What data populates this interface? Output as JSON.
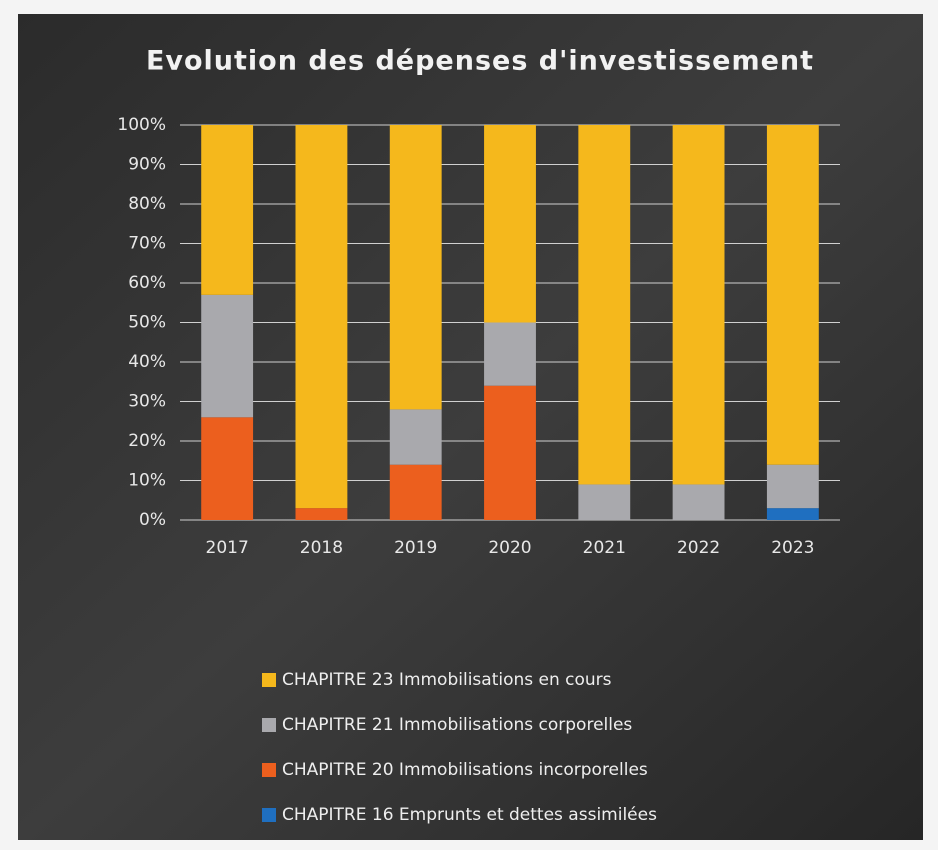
{
  "chart_data": {
    "type": "stacked_bar",
    "title": "Evolution des dépenses d'investissement",
    "categories": [
      "2017",
      "2018",
      "2019",
      "2020",
      "2021",
      "2022",
      "2023"
    ],
    "series": [
      {
        "name": "CHAPITRE 23 Immobilisations en cours",
        "color": "#f5b81c",
        "values": [
          43,
          97,
          72,
          50,
          91,
          91,
          86
        ]
      },
      {
        "name": "CHAPITRE 21 Immobilisations corporelles",
        "color": "#a9a9ad",
        "values": [
          31,
          0,
          14,
          16,
          9,
          9,
          11
        ]
      },
      {
        "name": "CHAPITRE 20 Immobilisations incorporelles",
        "color": "#ec5f1e",
        "values": [
          26,
          3,
          14,
          34,
          0,
          0,
          0
        ]
      },
      {
        "name": "CHAPITRE 16 Emprunts et dettes assimilées",
        "color": "#1f6fc0",
        "values": [
          0,
          0,
          0,
          0,
          0,
          0,
          3
        ]
      }
    ],
    "ylim": [
      0,
      100
    ],
    "yticks": [
      {
        "value": 0,
        "label": "0%"
      },
      {
        "value": 10,
        "label": "10%"
      },
      {
        "value": 20,
        "label": "20%"
      },
      {
        "value": 30,
        "label": "30%"
      },
      {
        "value": 40,
        "label": "40%"
      },
      {
        "value": 50,
        "label": "50%"
      },
      {
        "value": 60,
        "label": "60%"
      },
      {
        "value": 70,
        "label": "70%"
      },
      {
        "value": 80,
        "label": "80%"
      },
      {
        "value": 90,
        "label": "90%"
      },
      {
        "value": 100,
        "label": "100%"
      }
    ],
    "grid": true
  }
}
